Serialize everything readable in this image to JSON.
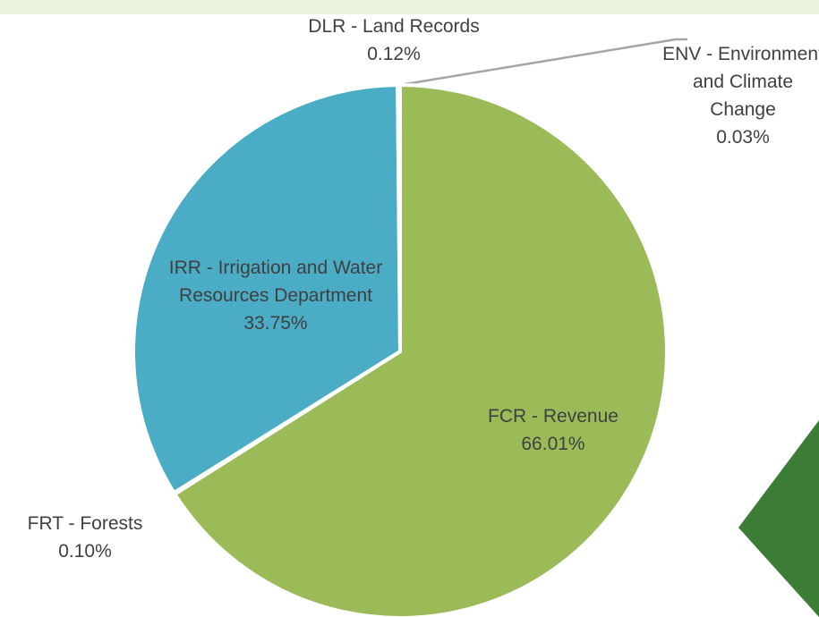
{
  "chart_data": {
    "type": "pie",
    "categories": [
      "FCR - Revenue",
      "FRT - Forests",
      "IRR - Irrigation and Water Resources Department",
      "DLR - Land Records",
      "ENV - Environment and Climate Change"
    ],
    "values": [
      66.01,
      0.1,
      33.75,
      0.12,
      0.03
    ],
    "value_labels": [
      "66.01%",
      "0.10%",
      "33.75%",
      "0.12%",
      "0.03%"
    ],
    "colors": [
      "#9bbb59",
      "#8064a2",
      "#4bacc6",
      "#a5a5a5",
      "#f79646"
    ]
  }
}
